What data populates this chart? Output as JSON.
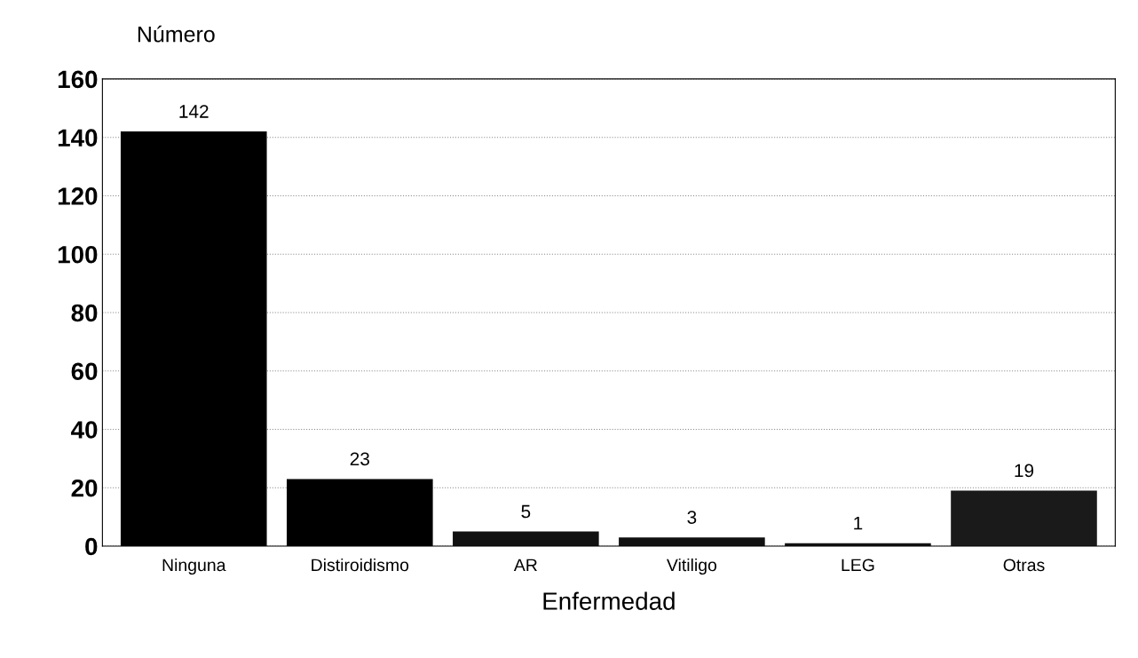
{
  "chart_data": {
    "type": "bar",
    "ylabel": "Número",
    "xlabel": "Enfermedad",
    "categories": [
      "Ninguna",
      "Distiroidismo",
      "AR",
      "Vitiligo",
      "LEG",
      "Otras"
    ],
    "values": [
      142,
      23,
      5,
      3,
      1,
      19
    ],
    "colors": [
      "#000000",
      "#000000",
      "#111111",
      "#111111",
      "#111111",
      "#1a1a1a"
    ],
    "ylim": [
      0,
      160
    ],
    "yticks": [
      0,
      20,
      40,
      60,
      80,
      100,
      120,
      140,
      160
    ],
    "grid": "y",
    "data_labels": true
  }
}
